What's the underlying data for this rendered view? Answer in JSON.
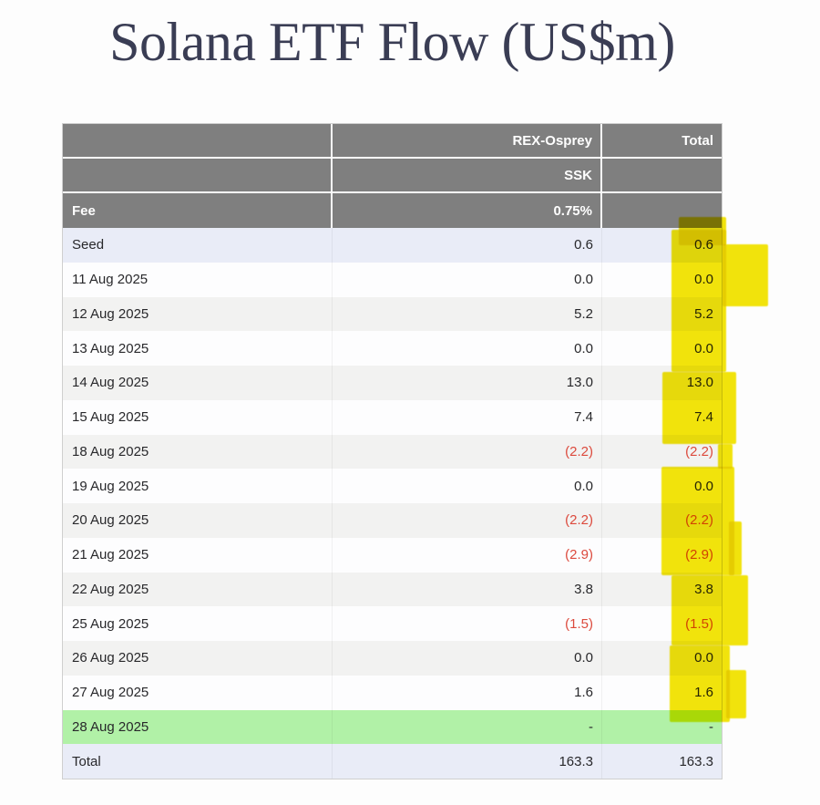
{
  "title": "Solana ETF Flow (US$m)",
  "colors": {
    "header_bg": "#7f7f7f",
    "header_text": "#ffffff",
    "highlight_yellow": "#f3e50c",
    "negative_red": "#dc4a3d",
    "seed_total_row_bg": "#e9ecf7",
    "alt_row_bg": "#f2f2f1",
    "green_row_bg": "#b1f1a7",
    "title_color": "#3a3d54"
  },
  "table": {
    "header": {
      "row1": {
        "col1": "",
        "col2": "REX-Osprey",
        "col3": "Total"
      },
      "row2": {
        "col1": "",
        "col2": "SSK",
        "col3": ""
      },
      "row3": {
        "col1": "Fee",
        "col2": "0.75%",
        "col3": ""
      }
    },
    "rows": [
      {
        "label": "Seed",
        "rex": "0.6",
        "total": "0.6",
        "style": "seed"
      },
      {
        "label": "11 Aug 2025",
        "rex": "0.0",
        "total": "0.0",
        "style": "white"
      },
      {
        "label": "12 Aug 2025",
        "rex": "5.2",
        "total": "5.2",
        "style": "gray"
      },
      {
        "label": "13 Aug 2025",
        "rex": "0.0",
        "total": "0.0",
        "style": "white"
      },
      {
        "label": "14 Aug 2025",
        "rex": "13.0",
        "total": "13.0",
        "style": "gray"
      },
      {
        "label": "15 Aug 2025",
        "rex": "7.4",
        "total": "7.4",
        "style": "white"
      },
      {
        "label": "18 Aug 2025",
        "rex": "(2.2)",
        "total": "(2.2)",
        "style": "gray"
      },
      {
        "label": "19 Aug 2025",
        "rex": "0.0",
        "total": "0.0",
        "style": "white"
      },
      {
        "label": "20 Aug 2025",
        "rex": "(2.2)",
        "total": "(2.2)",
        "style": "gray"
      },
      {
        "label": "21 Aug 2025",
        "rex": "(2.9)",
        "total": "(2.9)",
        "style": "white"
      },
      {
        "label": "22 Aug 2025",
        "rex": "3.8",
        "total": "3.8",
        "style": "gray"
      },
      {
        "label": "25 Aug 2025",
        "rex": "(1.5)",
        "total": "(1.5)",
        "style": "white"
      },
      {
        "label": "26 Aug 2025",
        "rex": "0.0",
        "total": "0.0",
        "style": "gray"
      },
      {
        "label": "27 Aug 2025",
        "rex": "1.6",
        "total": "1.6",
        "style": "white"
      },
      {
        "label": "28 Aug 2025",
        "rex": "-",
        "total": "-",
        "style": "green"
      },
      {
        "label": "Total",
        "rex": "163.3",
        "total": "163.3",
        "style": "total"
      }
    ]
  },
  "chart_data": {
    "type": "table",
    "title": "Solana ETF Flow (US$m)",
    "columns": [
      "",
      "REX-Osprey SSK (Fee 0.75%)",
      "Total"
    ],
    "categories": [
      "Seed",
      "11 Aug 2025",
      "12 Aug 2025",
      "13 Aug 2025",
      "14 Aug 2025",
      "15 Aug 2025",
      "18 Aug 2025",
      "19 Aug 2025",
      "20 Aug 2025",
      "21 Aug 2025",
      "22 Aug 2025",
      "25 Aug 2025",
      "26 Aug 2025",
      "27 Aug 2025",
      "28 Aug 2025",
      "Total"
    ],
    "series": [
      {
        "name": "REX-Osprey SSK",
        "values": [
          0.6,
          0.0,
          5.2,
          0.0,
          13.0,
          7.4,
          -2.2,
          0.0,
          -2.2,
          -2.9,
          3.8,
          -1.5,
          0.0,
          1.6,
          null,
          163.3
        ]
      },
      {
        "name": "Total",
        "values": [
          0.6,
          0.0,
          5.2,
          0.0,
          13.0,
          7.4,
          -2.2,
          0.0,
          -2.2,
          -2.9,
          3.8,
          -1.5,
          0.0,
          1.6,
          null,
          163.3
        ]
      }
    ],
    "annotations": {
      "fee": "0.75%",
      "highlighted_column": "Total",
      "green_highlighted_row": "28 Aug 2025"
    }
  }
}
